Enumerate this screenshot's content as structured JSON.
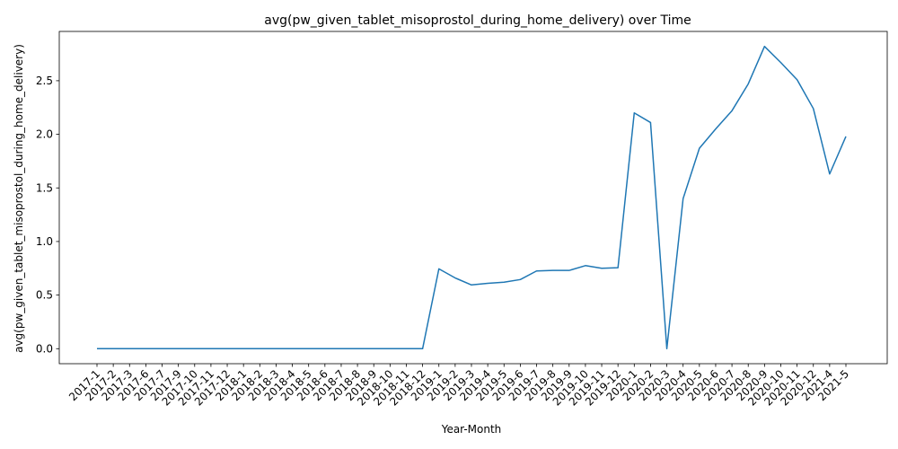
{
  "chart_data": {
    "type": "line",
    "title": "avg(pw_given_tablet_misoprostol_during_home_delivery) over Time",
    "xlabel": "Year-Month",
    "ylabel": "avg(pw_given_tablet_misoprostol_during_home_delivery)",
    "categories": [
      "2017-1",
      "2017-2",
      "2017-3",
      "2017-6",
      "2017-7",
      "2017-9",
      "2017-10",
      "2017-11",
      "2017-12",
      "2018-1",
      "2018-2",
      "2018-3",
      "2018-4",
      "2018-5",
      "2018-6",
      "2018-7",
      "2018-8",
      "2018-9",
      "2018-10",
      "2018-11",
      "2018-12",
      "2019-1",
      "2019-2",
      "2019-3",
      "2019-4",
      "2019-5",
      "2019-6",
      "2019-7",
      "2019-8",
      "2019-9",
      "2019-10",
      "2019-11",
      "2019-12",
      "2020-1",
      "2020-2",
      "2020-3",
      "2020-4",
      "2020-5",
      "2020-6",
      "2020-7",
      "2020-8",
      "2020-9",
      "2020-10",
      "2020-11",
      "2020-12",
      "2021-4",
      "2021-5"
    ],
    "values": [
      0,
      0,
      0,
      0,
      0,
      0,
      0,
      0,
      0,
      0,
      0,
      0,
      0,
      0,
      0,
      0,
      0,
      0,
      0,
      0,
      0,
      0.745,
      0.66,
      0.595,
      0.61,
      0.62,
      0.645,
      0.725,
      0.73,
      0.73,
      0.775,
      0.75,
      0.755,
      2.2,
      2.11,
      0,
      1.4,
      1.87,
      2.05,
      2.22,
      2.47,
      2.82,
      2.67,
      2.51,
      2.24,
      1.63,
      1.98
    ],
    "yticks": [
      0.0,
      0.5,
      1.0,
      1.5,
      2.0,
      2.5
    ],
    "ytick_labels": [
      "0.0",
      "0.5",
      "1.0",
      "1.5",
      "2.0",
      "2.5"
    ],
    "ylim": [
      -0.14,
      2.96
    ],
    "line_color": "#1f77b4",
    "grid": false,
    "legend": "none"
  }
}
